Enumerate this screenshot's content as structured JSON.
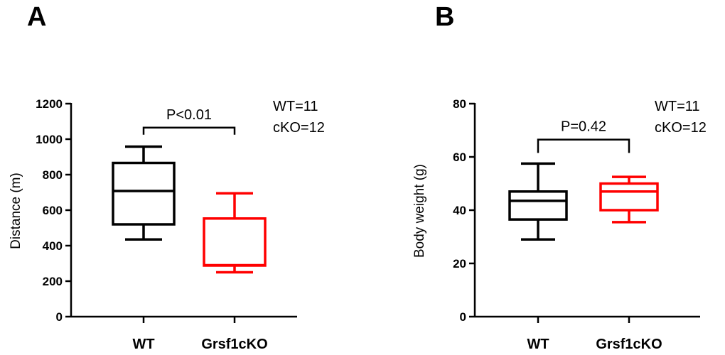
{
  "chart_data": [
    {
      "type": "box",
      "panel_label": "A",
      "ylabel": "Distance (m)",
      "ylim": [
        0,
        1200
      ],
      "yticks": [
        0,
        200,
        400,
        600,
        800,
        1000,
        1200
      ],
      "categories": [
        "WT",
        "Grsf1cKO"
      ],
      "boxes": [
        {
          "name": "WT",
          "color": "#000000",
          "min": 435,
          "q1": 520,
          "median": 708,
          "q3": 866,
          "max": 958
        },
        {
          "name": "Grsf1cKO",
          "color": "#ff0000",
          "min": 250,
          "q1": 288,
          "median": 290,
          "q3": 553,
          "max": 695
        }
      ],
      "significance": {
        "label": "P<0.01",
        "y": 1065,
        "tick_drop": 40
      },
      "annotations": [
        "WT=11",
        "cKO=12"
      ]
    },
    {
      "type": "box",
      "panel_label": "B",
      "ylabel": "Body weight (g)",
      "ylim": [
        0,
        80
      ],
      "yticks": [
        0,
        20,
        40,
        60,
        80
      ],
      "categories": [
        "WT",
        "Grsf1cKO"
      ],
      "boxes": [
        {
          "name": "WT",
          "color": "#000000",
          "min": 29,
          "q1": 36.5,
          "median": 43.5,
          "q3": 47,
          "max": 57.5
        },
        {
          "name": "Grsf1cKO",
          "color": "#ff0000",
          "min": 35.5,
          "q1": 40,
          "median": 47,
          "q3": 50,
          "max": 52.5
        }
      ],
      "significance": {
        "label": "P=0.42",
        "y": 66.5,
        "tick_drop": 5
      },
      "annotations": [
        "WT=11",
        "cKO=12"
      ]
    }
  ]
}
